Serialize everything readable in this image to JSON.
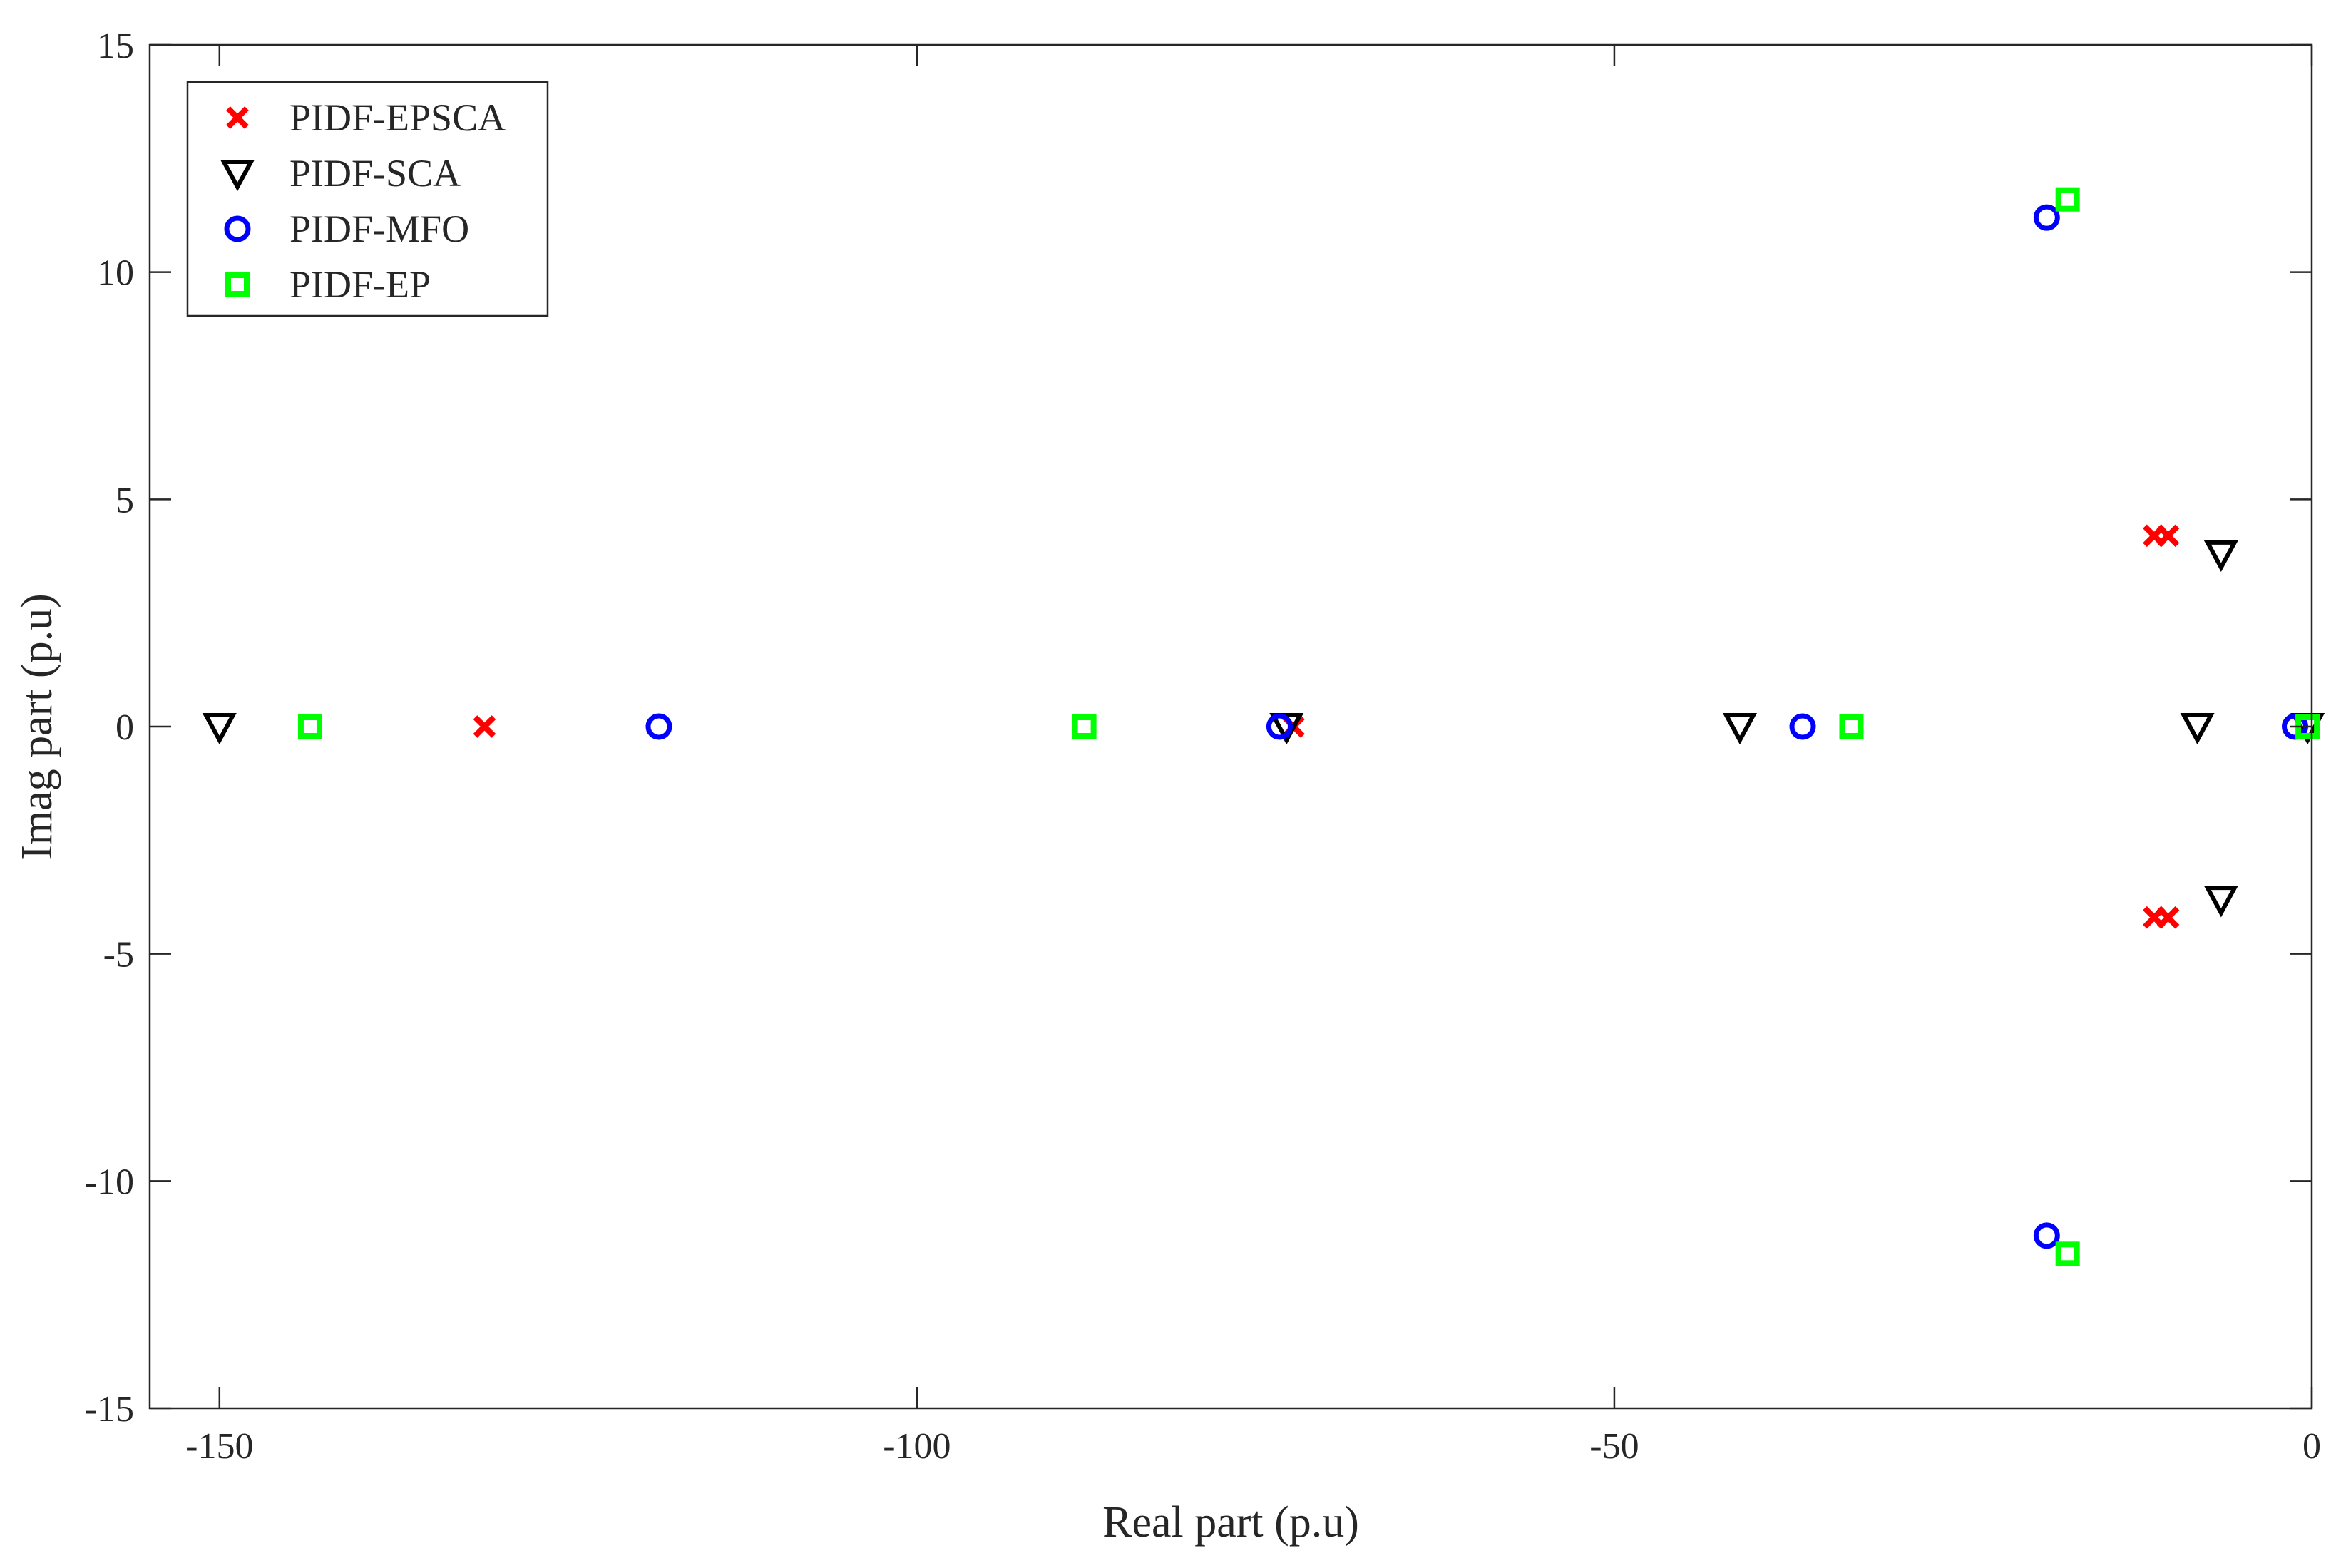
{
  "chart_data": {
    "type": "scatter",
    "title": "",
    "xlabel": "Real part (p.u)",
    "ylabel": "Imag part (p.u)",
    "xlim": [
      -155,
      0
    ],
    "ylim": [
      -15,
      15
    ],
    "xticks": [
      -150,
      -100,
      -50,
      0
    ],
    "yticks": [
      -15,
      -10,
      -5,
      0,
      5,
      10,
      15
    ],
    "grid": false,
    "legend_position": "top-left",
    "series": [
      {
        "name": "PIDF-EPSCA",
        "marker": "x",
        "color": "#ff0000",
        "points": [
          [
            -131,
            0
          ],
          [
            -73,
            0
          ],
          [
            -11.3,
            4.2
          ],
          [
            -10.3,
            4.2
          ],
          [
            -11.3,
            -4.2
          ],
          [
            -10.3,
            -4.2
          ]
        ]
      },
      {
        "name": "PIDF-SCA",
        "marker": "triangle-down",
        "color": "#000000",
        "points": [
          [
            -150,
            0
          ],
          [
            -73.5,
            0
          ],
          [
            -41,
            0
          ],
          [
            -8.2,
            0
          ],
          [
            -0.3,
            0
          ],
          [
            -6.5,
            3.8
          ],
          [
            -6.5,
            -3.8
          ]
        ]
      },
      {
        "name": "PIDF-MFO",
        "marker": "circle",
        "color": "#0000ff",
        "points": [
          [
            -118.5,
            0
          ],
          [
            -74,
            0
          ],
          [
            -36.5,
            0
          ],
          [
            -1.2,
            0
          ],
          [
            -19,
            11.2
          ],
          [
            -19,
            -11.2
          ]
        ]
      },
      {
        "name": "PIDF-EP",
        "marker": "square",
        "color": "#00ff00",
        "points": [
          [
            -143.5,
            0
          ],
          [
            -88,
            0
          ],
          [
            -33,
            0
          ],
          [
            -0.3,
            0
          ],
          [
            -17.5,
            11.6
          ],
          [
            -17.5,
            -11.6
          ]
        ]
      }
    ]
  }
}
